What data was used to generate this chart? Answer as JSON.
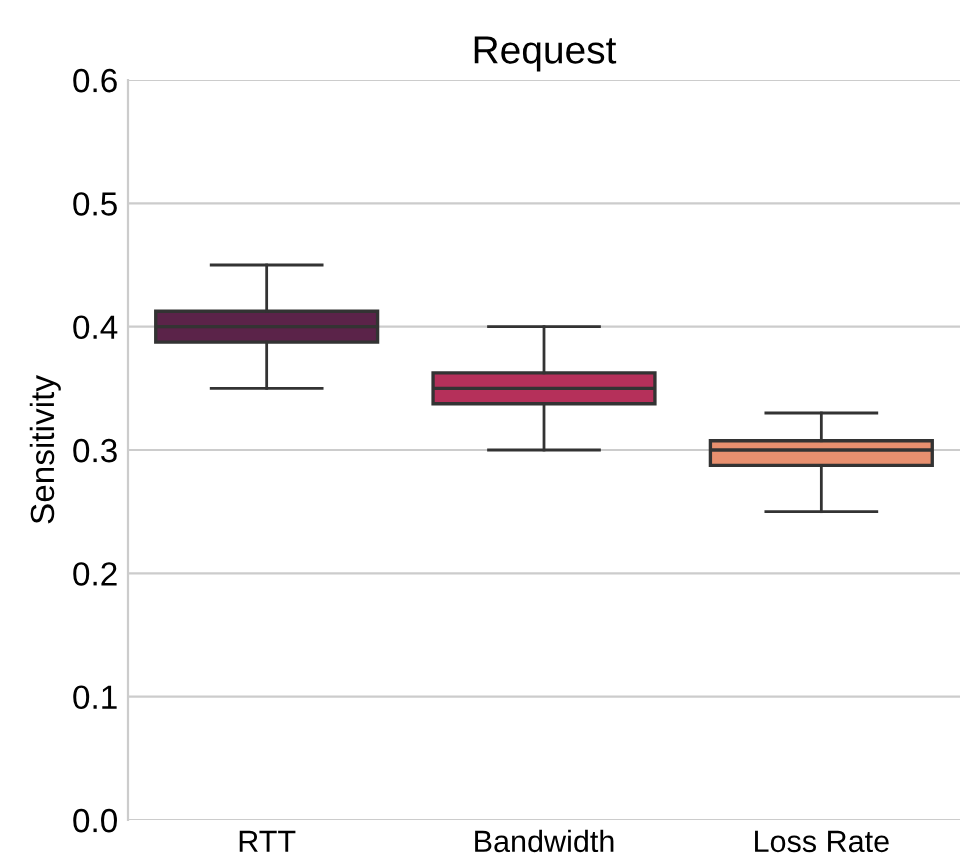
{
  "chart_data": {
    "type": "box",
    "title": "Request",
    "ylabel": "Sensitivity",
    "categories": [
      "RTT",
      "Bandwidth",
      "Loss Rate"
    ],
    "boxes": [
      {
        "low": 0.35,
        "q1": 0.3875,
        "median": 0.4,
        "q3": 0.4125,
        "high": 0.45
      },
      {
        "low": 0.3,
        "q1": 0.3375,
        "median": 0.35,
        "q3": 0.3625,
        "high": 0.4
      },
      {
        "low": 0.25,
        "q1": 0.2875,
        "median": 0.3,
        "q3": 0.3075,
        "high": 0.33
      }
    ],
    "colors": [
      "#5b2349",
      "#b5305a",
      "#e8906f"
    ],
    "ylim": [
      0,
      0.6
    ],
    "yticks": [
      {
        "value": 0,
        "label": "0.0"
      },
      {
        "value": 0.1,
        "label": "0.1"
      },
      {
        "value": 0.2,
        "label": "0.2"
      },
      {
        "value": 0.3,
        "label": "0.3"
      },
      {
        "value": 0.4,
        "label": "0.4"
      },
      {
        "value": 0.5,
        "label": "0.5"
      },
      {
        "value": 0.6,
        "label": "0.6"
      }
    ],
    "grid": "y"
  }
}
